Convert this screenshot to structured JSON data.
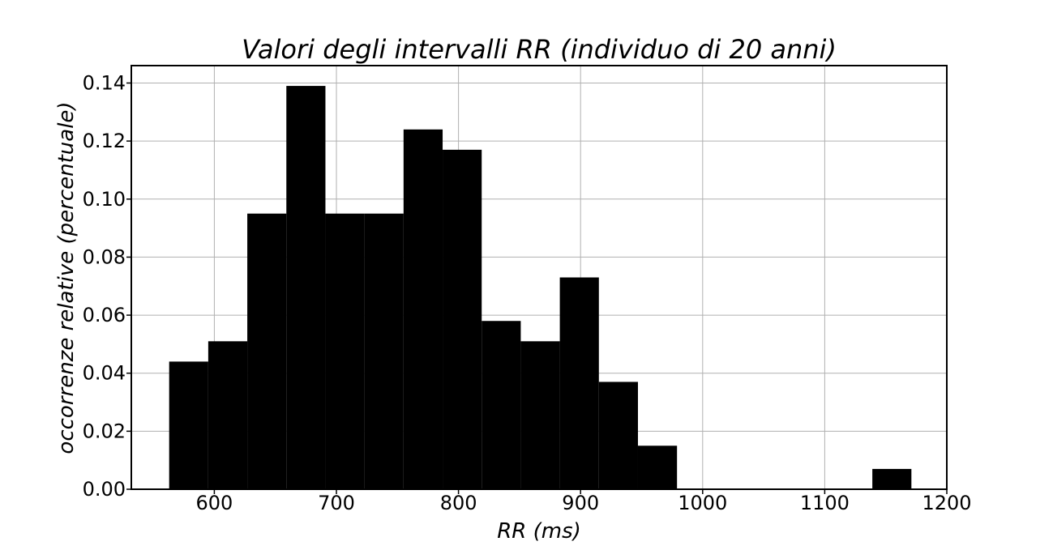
{
  "chart_data": {
    "type": "bar",
    "title": "Valori degli intervalli RR (individuo di 20 anni)",
    "xlabel": "RR (ms)",
    "ylabel": "occorrenze relative (percentuale)",
    "xlim": [
      532,
      1200
    ],
    "ylim": [
      0,
      0.146
    ],
    "xticks": [
      600,
      700,
      800,
      900,
      1000,
      1100,
      1200
    ],
    "yticks": [
      0.0,
      0.02,
      0.04,
      0.06,
      0.08,
      0.1,
      0.12,
      0.14
    ],
    "grid": true,
    "bins": [
      {
        "x0": 563,
        "x1": 595,
        "value": 0.044
      },
      {
        "x0": 595,
        "x1": 627,
        "value": 0.051
      },
      {
        "x0": 627,
        "x1": 659,
        "value": 0.095
      },
      {
        "x0": 659,
        "x1": 691,
        "value": 0.139
      },
      {
        "x0": 691,
        "x1": 723,
        "value": 0.095
      },
      {
        "x0": 723,
        "x1": 755,
        "value": 0.095
      },
      {
        "x0": 755,
        "x1": 787,
        "value": 0.124
      },
      {
        "x0": 787,
        "x1": 819,
        "value": 0.117
      },
      {
        "x0": 819,
        "x1": 851,
        "value": 0.058
      },
      {
        "x0": 851,
        "x1": 883,
        "value": 0.051
      },
      {
        "x0": 883,
        "x1": 915,
        "value": 0.073
      },
      {
        "x0": 915,
        "x1": 947,
        "value": 0.037
      },
      {
        "x0": 947,
        "x1": 979,
        "value": 0.015
      },
      {
        "x0": 979,
        "x1": 1011,
        "value": 0.0
      },
      {
        "x0": 1011,
        "x1": 1043,
        "value": 0.0
      },
      {
        "x0": 1043,
        "x1": 1075,
        "value": 0.0
      },
      {
        "x0": 1075,
        "x1": 1107,
        "value": 0.0
      },
      {
        "x0": 1107,
        "x1": 1139,
        "value": 0.0
      },
      {
        "x0": 1139,
        "x1": 1171,
        "value": 0.007
      }
    ],
    "colors": {
      "bar": "#000000",
      "grid": "#b0b0b0"
    }
  }
}
